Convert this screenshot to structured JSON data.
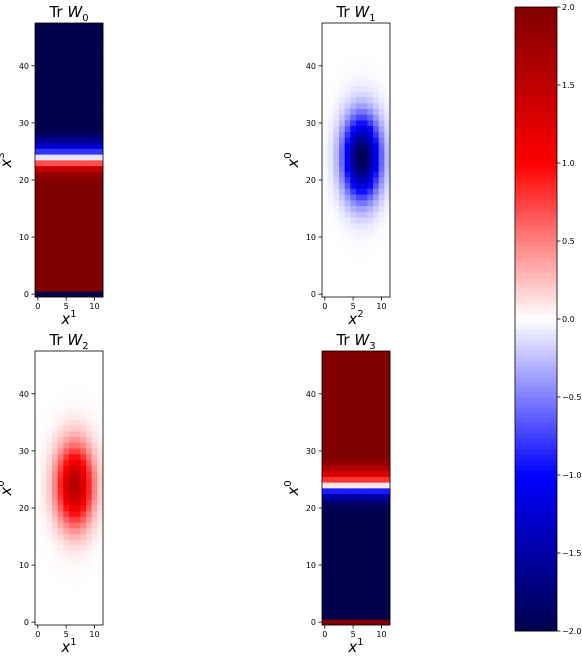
{
  "chart_data": [
    {
      "type": "heatmap",
      "title": "Tr W0",
      "title_parts": {
        "prefix": "Tr ",
        "var": "W",
        "sub": "0"
      },
      "xlabel_parts": {
        "var": "x",
        "sup": "1"
      },
      "ylabel_parts": {
        "var": "x",
        "sup": "3"
      },
      "xlim": [
        -0.5,
        11.5
      ],
      "ylim": [
        -0.5,
        47.5
      ],
      "xticks": [
        0,
        5,
        10
      ],
      "yticks": [
        0,
        10,
        20,
        30,
        40
      ],
      "profile": "stripes",
      "stripes": [
        [
          0,
          0,
          -2
        ],
        [
          1,
          19,
          2
        ],
        [
          20,
          20,
          1.95
        ],
        [
          21,
          21,
          1.8
        ],
        [
          22,
          22,
          1.45
        ],
        [
          23,
          23,
          0.7
        ],
        [
          24,
          24,
          -0.1
        ],
        [
          25,
          25,
          -0.8
        ],
        [
          26,
          26,
          -1.3
        ],
        [
          27,
          27,
          -1.6
        ],
        [
          28,
          28,
          -1.85
        ],
        [
          29,
          47,
          -2
        ]
      ]
    },
    {
      "type": "heatmap",
      "title": "Tr W1",
      "title_parts": {
        "prefix": "Tr ",
        "var": "W",
        "sub": "1"
      },
      "xlabel_parts": {
        "var": "x",
        "sup": "2"
      },
      "ylabel_parts": {
        "var": "x",
        "sup": "0"
      },
      "xlim": [
        -0.5,
        11.5
      ],
      "ylim": [
        -0.5,
        47.5
      ],
      "xticks": [
        0,
        5,
        10
      ],
      "yticks": [
        0,
        10,
        20,
        30,
        40
      ],
      "profile": "gaussian",
      "peak": -2.0,
      "center": [
        6.5,
        24
      ],
      "sigma": [
        3.2,
        7.0
      ]
    },
    {
      "type": "heatmap",
      "title": "Tr W2",
      "title_parts": {
        "prefix": "Tr ",
        "var": "W",
        "sub": "2"
      },
      "xlabel_parts": {
        "var": "x",
        "sup": "1"
      },
      "ylabel_parts": {
        "var": "x",
        "sup": "0"
      },
      "xlim": [
        -0.5,
        11.5
      ],
      "ylim": [
        -0.5,
        47.5
      ],
      "xticks": [
        0,
        5,
        10
      ],
      "yticks": [
        0,
        10,
        20,
        30,
        40
      ],
      "profile": "gaussian",
      "peak": 1.6,
      "center": [
        6.5,
        24
      ],
      "sigma": [
        3.2,
        7.0
      ]
    },
    {
      "type": "heatmap",
      "title": "Tr W3",
      "title_parts": {
        "prefix": "Tr ",
        "var": "W",
        "sub": "3"
      },
      "xlabel_parts": {
        "var": "x",
        "sup": "1"
      },
      "ylabel_parts": {
        "var": "x",
        "sup": "0"
      },
      "xlim": [
        -0.5,
        11.5
      ],
      "ylim": [
        -0.5,
        47.5
      ],
      "xticks": [
        0,
        5,
        10
      ],
      "yticks": [
        0,
        10,
        20,
        30,
        40
      ],
      "profile": "stripes",
      "stripes": [
        [
          0,
          0,
          2
        ],
        [
          1,
          19,
          -2
        ],
        [
          20,
          20,
          -1.95
        ],
        [
          21,
          21,
          -1.8
        ],
        [
          22,
          22,
          -1.5
        ],
        [
          23,
          23,
          -0.9
        ],
        [
          24,
          24,
          0.1
        ],
        [
          25,
          25,
          0.8
        ],
        [
          26,
          26,
          1.3
        ],
        [
          27,
          27,
          1.6
        ],
        [
          28,
          28,
          1.85
        ],
        [
          29,
          47,
          2
        ]
      ]
    }
  ],
  "colorbar": {
    "colormap": "seismic",
    "vmin": -2.0,
    "vmax": 2.0,
    "ticks": [
      {
        "value": 2.0,
        "label": "2.0"
      },
      {
        "value": 1.5,
        "label": "1.5"
      },
      {
        "value": 1.0,
        "label": "1.0"
      },
      {
        "value": 0.5,
        "label": "0.5"
      },
      {
        "value": 0.0,
        "label": "0.0"
      },
      {
        "value": -0.5,
        "label": "−0.5"
      },
      {
        "value": -1.0,
        "label": "−1.0"
      },
      {
        "value": -1.5,
        "label": "−1.5"
      },
      {
        "value": -2.0,
        "label": "−2.0"
      }
    ]
  }
}
